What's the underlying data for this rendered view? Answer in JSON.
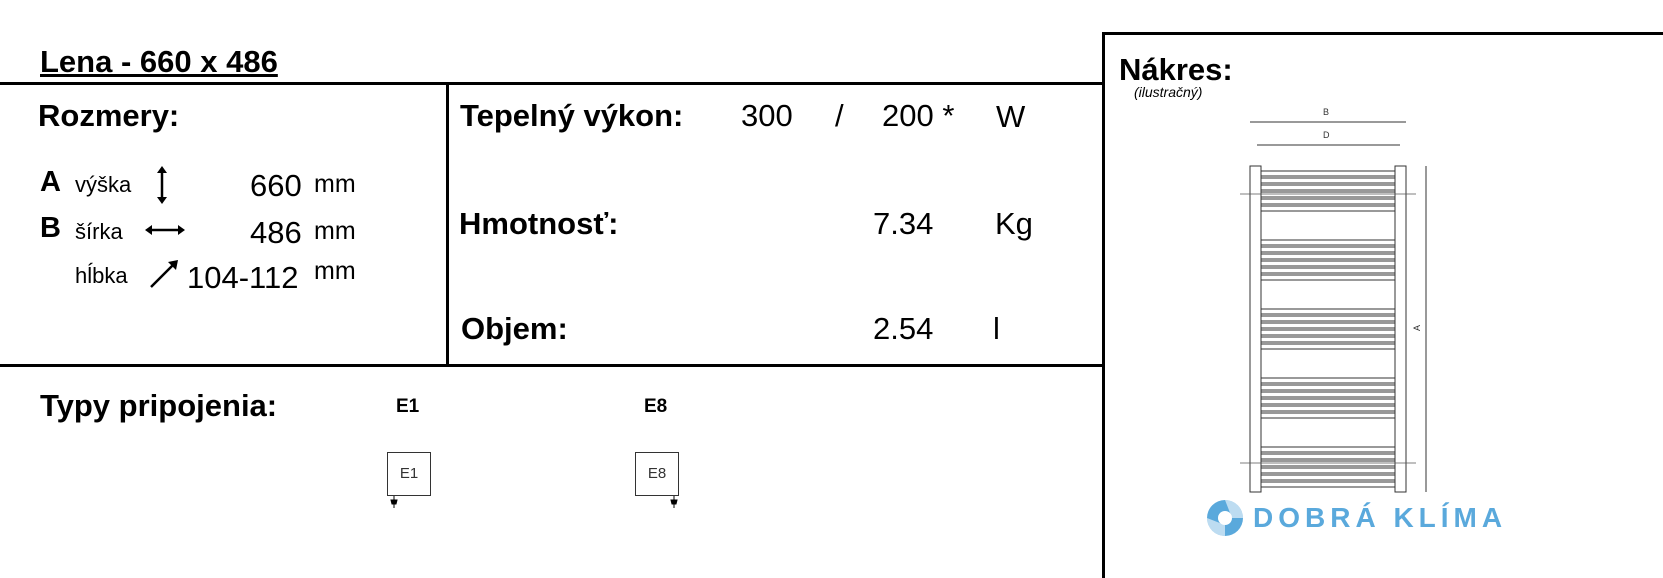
{
  "title": "Lena - 660 x 486",
  "dimensions": {
    "heading": "Rozmery:",
    "rows": [
      {
        "letter": "A",
        "label": "výška",
        "icon": "vertical-arrow-icon",
        "value": "660",
        "unit": "mm"
      },
      {
        "letter": "B",
        "label": "šírka",
        "icon": "horizontal-arrow-icon",
        "value": "486",
        "unit": "mm"
      },
      {
        "letter": "",
        "label": "hĺbka",
        "icon": "diagonal-arrow-icon",
        "value": "104-112",
        "unit": "mm"
      }
    ]
  },
  "specs": {
    "power": {
      "label": "Tepelný výkon:",
      "value1": "300",
      "separator": "/",
      "value2": "200 *",
      "unit": "W"
    },
    "weight": {
      "label": "Hmotnosť:",
      "value": "7.34",
      "unit": "Kg"
    },
    "volume": {
      "label": "Objem:",
      "value": "2.54",
      "unit": "l"
    }
  },
  "connections": {
    "heading": "Typy pripojenia:",
    "types": [
      {
        "label": "E1",
        "box_text": "E1"
      },
      {
        "label": "E8",
        "box_text": "E8"
      }
    ]
  },
  "drawing": {
    "heading": "Nákres:",
    "subheading": "(ilustračný)",
    "dim_labels": {
      "b": "B",
      "d": "D",
      "a": "A"
    }
  },
  "logo": {
    "text": "DOBRÁ KLÍMA",
    "color": "#5aa9dc"
  }
}
